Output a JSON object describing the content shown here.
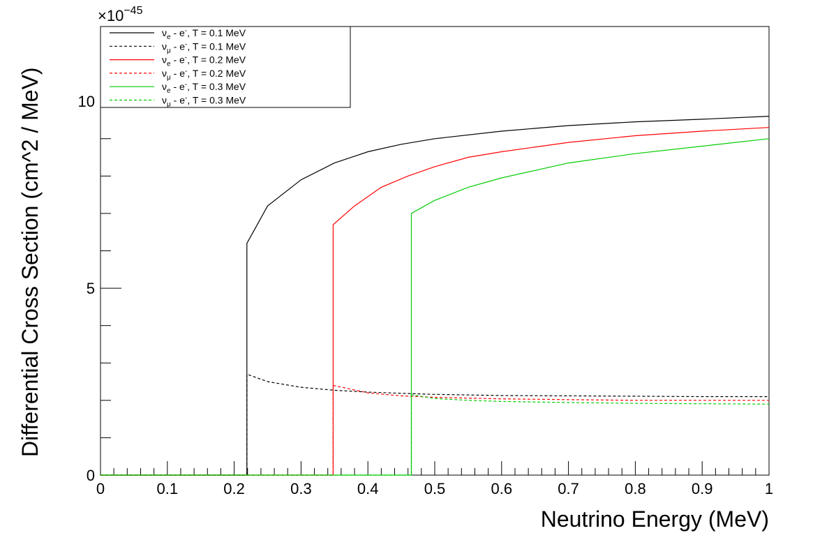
{
  "chart_data": {
    "type": "line",
    "xlabel": "Neutrino Energy (MeV)",
    "ylabel": "Differential Cross Section (cm^2 / MeV)",
    "y_multiplier": "×10",
    "y_exponent": "−45",
    "xlim": [
      0,
      1
    ],
    "ylim": [
      0,
      12
    ],
    "x_ticks": [
      "0",
      "0.1",
      "0.2",
      "0.3",
      "0.4",
      "0.5",
      "0.6",
      "0.7",
      "0.8",
      "0.9",
      "1"
    ],
    "y_ticks": [
      "0",
      "5",
      "10"
    ],
    "grid": false,
    "legend_position": "top-left",
    "series": [
      {
        "name": "νe - e⁻, T = 0.1 MeV",
        "legend": {
          "nu": "ν",
          "sub": "e",
          "rest": " - e",
          "sup": "-",
          "tail": ", T = 0.1 MeV"
        },
        "color": "#000000",
        "dash": "solid",
        "x": [
          0.0,
          0.219,
          0.219,
          0.25,
          0.3,
          0.35,
          0.4,
          0.45,
          0.5,
          0.6,
          0.7,
          0.8,
          0.9,
          1.0
        ],
        "y": [
          0.0,
          0.0,
          6.2,
          7.2,
          7.9,
          8.35,
          8.65,
          8.85,
          9.0,
          9.2,
          9.35,
          9.45,
          9.52,
          9.6
        ]
      },
      {
        "name": "νμ - e⁻, T = 0.1 MeV",
        "legend": {
          "nu": "ν",
          "sub": "μ",
          "rest": " - e",
          "sup": "-",
          "tail": ", T = 0.1 MeV"
        },
        "color": "#000000",
        "dash": "dashed",
        "x": [
          0.0,
          0.219,
          0.219,
          0.25,
          0.3,
          0.35,
          0.4,
          0.45,
          0.5,
          0.6,
          0.7,
          0.8,
          0.9,
          1.0
        ],
        "y": [
          0.0,
          0.0,
          2.7,
          2.5,
          2.35,
          2.27,
          2.22,
          2.19,
          2.16,
          2.13,
          2.12,
          2.11,
          2.1,
          2.1
        ]
      },
      {
        "name": "νe - e⁻, T = 0.2 MeV",
        "legend": {
          "nu": "ν",
          "sub": "e",
          "rest": " - e",
          "sup": "-",
          "tail": ", T = 0.2 MeV"
        },
        "color": "#ff0000",
        "dash": "solid",
        "x": [
          0.0,
          0.348,
          0.348,
          0.38,
          0.42,
          0.46,
          0.5,
          0.55,
          0.6,
          0.7,
          0.8,
          0.9,
          1.0
        ],
        "y": [
          0.0,
          0.0,
          6.7,
          7.2,
          7.7,
          8.0,
          8.25,
          8.5,
          8.65,
          8.9,
          9.08,
          9.2,
          9.3
        ]
      },
      {
        "name": "νμ - e⁻, T = 0.2 MeV",
        "legend": {
          "nu": "ν",
          "sub": "μ",
          "rest": " - e",
          "sup": "-",
          "tail": ", T = 0.2 MeV"
        },
        "color": "#ff0000",
        "dash": "dashed",
        "x": [
          0.0,
          0.348,
          0.348,
          0.4,
          0.45,
          0.5,
          0.6,
          0.7,
          0.8,
          0.9,
          1.0
        ],
        "y": [
          0.0,
          0.0,
          2.4,
          2.2,
          2.12,
          2.08,
          2.04,
          2.02,
          2.0,
          2.0,
          2.0
        ]
      },
      {
        "name": "νe - e⁻, T = 0.3 MeV",
        "legend": {
          "nu": "ν",
          "sub": "e",
          "rest": " - e",
          "sup": "-",
          "tail": ", T = 0.3 MeV"
        },
        "color": "#00cc00",
        "dash": "solid",
        "x": [
          0.0,
          0.465,
          0.465,
          0.5,
          0.55,
          0.6,
          0.65,
          0.7,
          0.8,
          0.9,
          1.0
        ],
        "y": [
          0.0,
          0.0,
          7.0,
          7.35,
          7.7,
          7.95,
          8.15,
          8.35,
          8.6,
          8.8,
          9.0
        ]
      },
      {
        "name": "νμ - e⁻, T = 0.3 MeV",
        "legend": {
          "nu": "ν",
          "sub": "μ",
          "rest": " - e",
          "sup": "-",
          "tail": ", T = 0.3 MeV"
        },
        "color": "#00cc00",
        "dash": "dashed",
        "x": [
          0.0,
          0.465,
          0.465,
          0.5,
          0.55,
          0.6,
          0.7,
          0.8,
          0.9,
          1.0
        ],
        "y": [
          0.0,
          0.0,
          2.15,
          2.05,
          2.0,
          1.97,
          1.94,
          1.92,
          1.91,
          1.9
        ]
      }
    ]
  }
}
